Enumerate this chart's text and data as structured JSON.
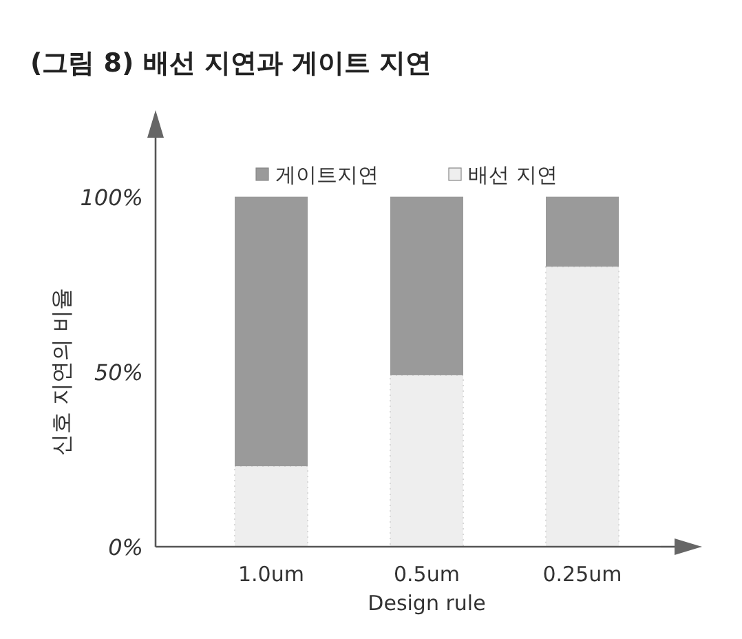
{
  "chart_data": {
    "type": "bar",
    "stacked": true,
    "title": "(그림 8) 배선 지연과 게이트 지연",
    "xlabel": "Design rule",
    "ylabel": "신호 지연의 비율",
    "categories": [
      "1.0um",
      "0.5um",
      "0.25um"
    ],
    "series": [
      {
        "name": "배선 지연",
        "color": "#eeeeee",
        "values": [
          23,
          49,
          80
        ]
      },
      {
        "name": "게이트지연",
        "color": "#9a9a9a",
        "values": [
          77,
          51,
          20
        ]
      }
    ],
    "ylim": [
      0,
      120
    ],
    "yticks": [
      {
        "value": 0,
        "label": "0%"
      },
      {
        "value": 50,
        "label": "50%"
      },
      {
        "value": 100,
        "label": "100%"
      }
    ],
    "legend": "top",
    "grid": false
  }
}
